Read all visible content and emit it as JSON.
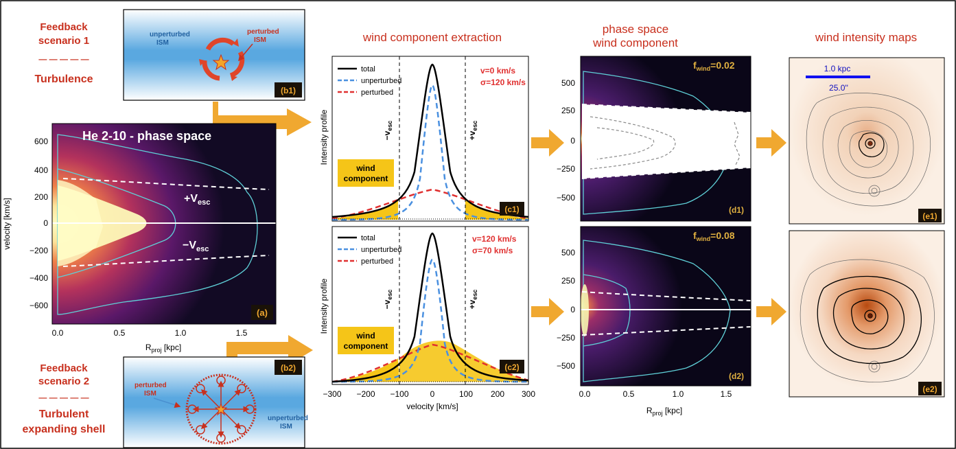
{
  "scenario1": {
    "title_lines": [
      "Feedback",
      "scenario 1"
    ],
    "dashes": "— — — — —",
    "subtitle": "Turbulence",
    "unperturbed": [
      "unperturbed",
      "ISM"
    ],
    "perturbed": [
      "perturbed",
      "ISM"
    ],
    "tag": "(b1)"
  },
  "scenario2": {
    "title_lines": [
      "Feedback",
      "scenario 2"
    ],
    "dashes": "— — — — —",
    "subtitle_lines": [
      "Turbulent",
      "expanding shell"
    ],
    "unperturbed": [
      "unperturbed",
      "ISM"
    ],
    "perturbed": [
      "perturbed",
      "ISM"
    ],
    "tag": "(b2)"
  },
  "panel_a": {
    "title": "He 2-10 - phase space",
    "tag": "(a)",
    "ylabel": "velocity [km/s]",
    "xlabel_main": "R",
    "xlabel_sub": "proj",
    "xlabel_unit": " [kpc]",
    "yticks": [
      "600",
      "400",
      "200",
      "0",
      "−200",
      "−400",
      "−600"
    ],
    "xticks": [
      "0.0",
      "0.5",
      "1.0",
      "1.5"
    ],
    "vesc_pos": "+V",
    "vesc_neg": "−V",
    "vesc_sub": "esc"
  },
  "headers": {
    "c": "wind component extraction",
    "d_lines": [
      "phase space",
      "wind component"
    ],
    "e": "wind intensity maps"
  },
  "panel_c1": {
    "legend": [
      "total",
      "unperturbed",
      "perturbed"
    ],
    "params": [
      "v=0 km/s",
      "σ=120 km/s"
    ],
    "wind_label": [
      "wind",
      "component"
    ],
    "tag": "(c1)",
    "vesc_neg": "−v",
    "vesc_pos": "+v",
    "vesc_sub": "esc",
    "ylabel": "Intensity profile"
  },
  "panel_c2": {
    "legend": [
      "total",
      "unperturbed",
      "perturbed"
    ],
    "params": [
      "v=120 km/s",
      "σ=70 km/s"
    ],
    "wind_label": [
      "wind",
      "component"
    ],
    "tag": "(c2)",
    "vesc_neg": "−v",
    "vesc_pos": "+v",
    "vesc_sub": "esc",
    "ylabel": "Intensity profile",
    "xticks": [
      "−300",
      "−200",
      "−100",
      "0",
      "100",
      "200",
      "300"
    ],
    "xlabel": "velocity [km/s]"
  },
  "panel_d1": {
    "fwind": "f",
    "fwind_sub": "wind",
    "fwind_val": "=0.02",
    "tag": "(d1)",
    "yticks": [
      "500",
      "250",
      "0",
      "−250",
      "−500"
    ]
  },
  "panel_d2": {
    "fwind": "f",
    "fwind_sub": "wind",
    "fwind_val": "=0.08",
    "tag": "(d2)",
    "yticks": [
      "500",
      "250",
      "0",
      "−250",
      "−500"
    ],
    "xticks": [
      "0.0",
      "0.5",
      "1.0",
      "1.5"
    ],
    "xlabel_main": "R",
    "xlabel_sub": "proj",
    "xlabel_unit": " [kpc]"
  },
  "panel_e1": {
    "scale_kpc": "1.0 kpc",
    "scale_arcsec": "25.0''",
    "tag": "(e1)"
  },
  "panel_e2": {
    "tag": "(e2)"
  },
  "colors": {
    "accent_red": "#c8301e",
    "arrow_orange": "#f0a830",
    "contour_cyan": "#5fd0d8",
    "wind_fill": "#f5c518",
    "ism_blue": "#5aa8e0",
    "tag_bg": "#1a1208",
    "tag_text": "#f0a830"
  }
}
